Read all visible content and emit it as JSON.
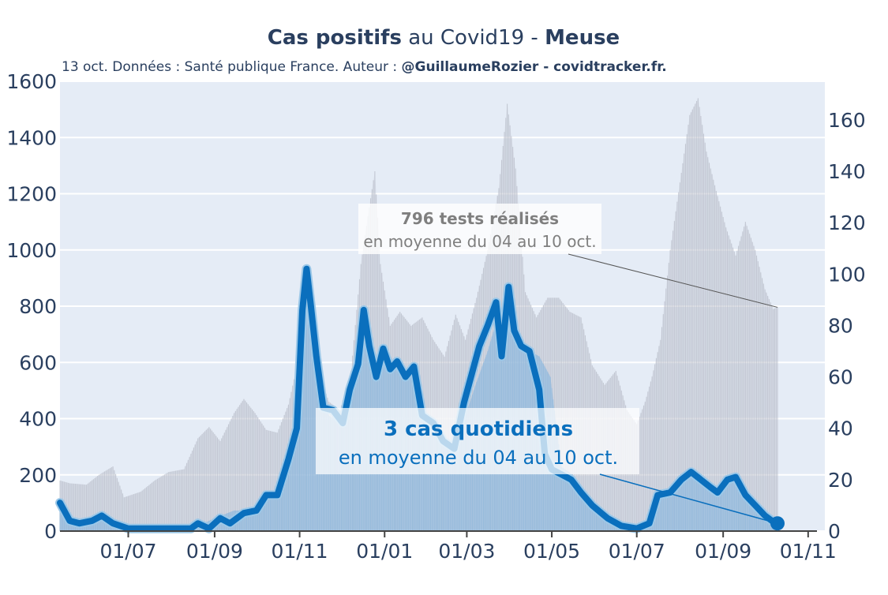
{
  "chart_data": {
    "type": "bar+line",
    "title": {
      "bold_part_1": "Cas positifs",
      "middle": " au Covid19 - ",
      "bold_part_2": "Meuse"
    },
    "subtitle": {
      "plain": "13 oct. Données : Santé publique France. Auteur : ",
      "bold": "@GuillaumeRozier - covidtracker.fr."
    },
    "x_axis": {
      "start": "2020-05-13",
      "end": "2021-11-13",
      "tick_labels": [
        "01/07",
        "01/09",
        "01/11",
        "01/01",
        "01/03",
        "01/05",
        "01/07",
        "01/09",
        "01/11"
      ],
      "tick_dates": [
        "2020-07-01",
        "2020-09-01",
        "2020-11-01",
        "2021-01-01",
        "2021-03-01",
        "2021-05-01",
        "2021-07-01",
        "2021-09-01",
        "2021-11-01"
      ]
    },
    "y_left": {
      "range": [
        0,
        1600
      ],
      "ticks": [
        0,
        200,
        400,
        600,
        800,
        1000,
        1200,
        1400,
        1600
      ]
    },
    "y_right": {
      "range": [
        0,
        175
      ],
      "ticks": [
        0,
        20,
        40,
        60,
        80,
        100,
        120,
        140,
        160
      ]
    },
    "grid": true,
    "series": [
      {
        "axis": "left",
        "style": "grey-bars",
        "points": [
          [
            "2020-05-13",
            180
          ],
          [
            "2020-05-20",
            170
          ],
          [
            "2020-06-01",
            165
          ],
          [
            "2020-06-10",
            200
          ],
          [
            "2020-06-20",
            230
          ],
          [
            "2020-06-28",
            120
          ],
          [
            "2020-07-10",
            140
          ],
          [
            "2020-07-20",
            180
          ],
          [
            "2020-07-30",
            210
          ],
          [
            "2020-08-10",
            220
          ],
          [
            "2020-08-20",
            330
          ],
          [
            "2020-08-28",
            370
          ],
          [
            "2020-09-05",
            320
          ],
          [
            "2020-09-15",
            420
          ],
          [
            "2020-09-22",
            470
          ],
          [
            "2020-09-30",
            420
          ],
          [
            "2020-10-08",
            360
          ],
          [
            "2020-10-16",
            350
          ],
          [
            "2020-10-24",
            450
          ],
          [
            "2020-11-01",
            630
          ],
          [
            "2020-11-08",
            750
          ],
          [
            "2020-11-15",
            560
          ],
          [
            "2020-11-22",
            460
          ],
          [
            "2020-11-30",
            430
          ],
          [
            "2020-12-08",
            570
          ],
          [
            "2020-12-15",
            950
          ],
          [
            "2020-12-20",
            1120
          ],
          [
            "2020-12-25",
            1280
          ],
          [
            "2020-12-29",
            950
          ],
          [
            "2021-01-05",
            730
          ],
          [
            "2021-01-12",
            780
          ],
          [
            "2021-01-20",
            730
          ],
          [
            "2021-01-28",
            760
          ],
          [
            "2021-02-05",
            680
          ],
          [
            "2021-02-13",
            620
          ],
          [
            "2021-02-21",
            770
          ],
          [
            "2021-02-28",
            680
          ],
          [
            "2021-03-08",
            830
          ],
          [
            "2021-03-16",
            1000
          ],
          [
            "2021-03-24",
            1220
          ],
          [
            "2021-03-30",
            1520
          ],
          [
            "2021-04-05",
            1290
          ],
          [
            "2021-04-12",
            850
          ],
          [
            "2021-04-20",
            760
          ],
          [
            "2021-04-28",
            830
          ],
          [
            "2021-05-06",
            830
          ],
          [
            "2021-05-14",
            780
          ],
          [
            "2021-05-22",
            760
          ],
          [
            "2021-05-30",
            590
          ],
          [
            "2021-06-08",
            520
          ],
          [
            "2021-06-16",
            570
          ],
          [
            "2021-06-24",
            430
          ],
          [
            "2021-07-01",
            380
          ],
          [
            "2021-07-07",
            460
          ],
          [
            "2021-07-12",
            550
          ],
          [
            "2021-07-18",
            680
          ],
          [
            "2021-07-25",
            1000
          ],
          [
            "2021-08-01",
            1240
          ],
          [
            "2021-08-08",
            1480
          ],
          [
            "2021-08-14",
            1540
          ],
          [
            "2021-08-20",
            1350
          ],
          [
            "2021-08-27",
            1210
          ],
          [
            "2021-09-03",
            1080
          ],
          [
            "2021-09-10",
            980
          ],
          [
            "2021-09-17",
            1100
          ],
          [
            "2021-09-24",
            1000
          ],
          [
            "2021-10-01",
            860
          ],
          [
            "2021-10-07",
            790
          ],
          [
            "2021-10-10",
            796
          ]
        ]
      },
      {
        "axis": "right",
        "style": "light-blue-bars",
        "points": [
          [
            "2020-05-13",
            9
          ],
          [
            "2020-05-22",
            4
          ],
          [
            "2020-06-05",
            3
          ],
          [
            "2020-06-15",
            5
          ],
          [
            "2020-06-25",
            2
          ],
          [
            "2020-07-10",
            1
          ],
          [
            "2020-08-01",
            1
          ],
          [
            "2020-08-20",
            2
          ],
          [
            "2020-09-01",
            5
          ],
          [
            "2020-09-15",
            8
          ],
          [
            "2020-10-01",
            8
          ],
          [
            "2020-10-08",
            13
          ],
          [
            "2020-10-16",
            14
          ],
          [
            "2020-10-24",
            25
          ],
          [
            "2020-11-01",
            60
          ],
          [
            "2020-11-05",
            98
          ],
          [
            "2020-11-10",
            80
          ],
          [
            "2020-11-15",
            55
          ],
          [
            "2020-11-22",
            45
          ],
          [
            "2020-11-30",
            42
          ],
          [
            "2020-12-08",
            55
          ],
          [
            "2020-12-15",
            80
          ],
          [
            "2020-12-21",
            70
          ],
          [
            "2020-12-28",
            65
          ],
          [
            "2021-01-05",
            68
          ],
          [
            "2021-01-12",
            62
          ],
          [
            "2021-01-20",
            60
          ],
          [
            "2021-01-28",
            45
          ],
          [
            "2021-02-05",
            40
          ],
          [
            "2021-02-13",
            35
          ],
          [
            "2021-02-21",
            30
          ],
          [
            "2021-02-28",
            45
          ],
          [
            "2021-03-08",
            58
          ],
          [
            "2021-03-16",
            70
          ],
          [
            "2021-03-24",
            85
          ],
          [
            "2021-04-01",
            92
          ],
          [
            "2021-04-08",
            75
          ],
          [
            "2021-04-15",
            70
          ],
          [
            "2021-04-22",
            68
          ],
          [
            "2021-04-30",
            60
          ],
          [
            "2021-05-08",
            25
          ],
          [
            "2021-05-16",
            22
          ],
          [
            "2021-05-24",
            15
          ],
          [
            "2021-06-01",
            10
          ],
          [
            "2021-06-10",
            5
          ],
          [
            "2021-06-20",
            2
          ],
          [
            "2021-07-01",
            1
          ],
          [
            "2021-07-10",
            3
          ],
          [
            "2021-07-20",
            14
          ],
          [
            "2021-08-01",
            20
          ],
          [
            "2021-08-10",
            24
          ],
          [
            "2021-08-20",
            20
          ],
          [
            "2021-08-28",
            15
          ],
          [
            "2021-09-05",
            19
          ],
          [
            "2021-09-12",
            20
          ],
          [
            "2021-09-20",
            12
          ],
          [
            "2021-09-28",
            8
          ],
          [
            "2021-10-05",
            5
          ],
          [
            "2021-10-10",
            3
          ]
        ]
      },
      {
        "axis": "right",
        "style": "blue-line",
        "points": [
          [
            "2020-05-13",
            11
          ],
          [
            "2020-05-20",
            4
          ],
          [
            "2020-05-27",
            3
          ],
          [
            "2020-06-05",
            4
          ],
          [
            "2020-06-12",
            6
          ],
          [
            "2020-06-20",
            3
          ],
          [
            "2020-07-01",
            1
          ],
          [
            "2020-07-15",
            1
          ],
          [
            "2020-08-01",
            1
          ],
          [
            "2020-08-15",
            1
          ],
          [
            "2020-08-20",
            3
          ],
          [
            "2020-08-28",
            1
          ],
          [
            "2020-09-05",
            5
          ],
          [
            "2020-09-12",
            3
          ],
          [
            "2020-09-22",
            7
          ],
          [
            "2020-10-01",
            8
          ],
          [
            "2020-10-08",
            14
          ],
          [
            "2020-10-16",
            14
          ],
          [
            "2020-10-24",
            28
          ],
          [
            "2020-10-30",
            40
          ],
          [
            "2020-11-03",
            86
          ],
          [
            "2020-11-06",
            102
          ],
          [
            "2020-11-09",
            88
          ],
          [
            "2020-11-13",
            68
          ],
          [
            "2020-11-18",
            48
          ],
          [
            "2020-11-25",
            47
          ],
          [
            "2020-12-02",
            42
          ],
          [
            "2020-12-07",
            55
          ],
          [
            "2020-12-13",
            65
          ],
          [
            "2020-12-17",
            86
          ],
          [
            "2020-12-21",
            72
          ],
          [
            "2020-12-26",
            60
          ],
          [
            "2020-12-31",
            71
          ],
          [
            "2021-01-05",
            63
          ],
          [
            "2021-01-10",
            66
          ],
          [
            "2021-01-16",
            60
          ],
          [
            "2021-01-22",
            64
          ],
          [
            "2021-01-28",
            45
          ],
          [
            "2021-02-05",
            42
          ],
          [
            "2021-02-12",
            35
          ],
          [
            "2021-02-20",
            32
          ],
          [
            "2021-02-27",
            50
          ],
          [
            "2021-03-05",
            62
          ],
          [
            "2021-03-10",
            72
          ],
          [
            "2021-03-16",
            80
          ],
          [
            "2021-03-22",
            89
          ],
          [
            "2021-03-26",
            68
          ],
          [
            "2021-03-31",
            95
          ],
          [
            "2021-04-04",
            78
          ],
          [
            "2021-04-09",
            72
          ],
          [
            "2021-04-15",
            70
          ],
          [
            "2021-04-22",
            55
          ],
          [
            "2021-04-26",
            30
          ],
          [
            "2021-05-01",
            24
          ],
          [
            "2021-05-08",
            22
          ],
          [
            "2021-05-15",
            20
          ],
          [
            "2021-05-22",
            15
          ],
          [
            "2021-05-30",
            10
          ],
          [
            "2021-06-10",
            5
          ],
          [
            "2021-06-20",
            2
          ],
          [
            "2021-07-01",
            1
          ],
          [
            "2021-07-10",
            3
          ],
          [
            "2021-07-16",
            14
          ],
          [
            "2021-07-25",
            15
          ],
          [
            "2021-08-02",
            20
          ],
          [
            "2021-08-09",
            23
          ],
          [
            "2021-08-16",
            20
          ],
          [
            "2021-08-23",
            17
          ],
          [
            "2021-08-28",
            15
          ],
          [
            "2021-09-04",
            20
          ],
          [
            "2021-09-10",
            21
          ],
          [
            "2021-09-17",
            14
          ],
          [
            "2021-09-24",
            10
          ],
          [
            "2021-10-01",
            6
          ],
          [
            "2021-10-06",
            4
          ],
          [
            "2021-10-10",
            3
          ]
        ]
      }
    ],
    "annotations": [
      {
        "id": "tests",
        "bold": "796 tests réalisés",
        "plain": "en moyenne du 04 au 10 oct.",
        "target_date": "2021-10-10",
        "target_value": 796,
        "target_axis": "left"
      },
      {
        "id": "cases",
        "bold": "3 cas quotidiens",
        "plain": "en moyenne du 04 au 10 oct.",
        "target_date": "2021-10-10",
        "target_value": 3,
        "target_axis": "right"
      }
    ],
    "colors": {
      "background_plot": "#e5ecf6",
      "grid": "#ffffff",
      "text": "#2a3f5f",
      "tests_bars": "#b9bec9",
      "cases_bars": "#8fb8dc",
      "cases_line": "#0a6fbd",
      "cases_line_light": "#9cc8e8",
      "tests_label": "#7f7f7f",
      "cases_label": "#0a6fbd"
    }
  }
}
